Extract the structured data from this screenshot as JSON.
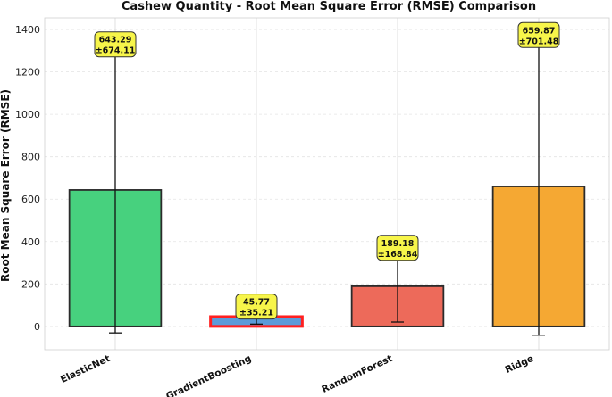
{
  "chart_data": {
    "type": "bar",
    "title": "Cashew Quantity - Root Mean Square Error (RMSE) Comparison",
    "xlabel": "",
    "ylabel": "Root Mean Square Error (RMSE)",
    "ylim": [
      -110,
      1455
    ],
    "yticks": [
      0,
      200,
      400,
      600,
      800,
      1000,
      1200,
      1400
    ],
    "grid": true,
    "categories": [
      "ElasticNet",
      "GradientBoosting",
      "RandomForest",
      "Ridge"
    ],
    "values": [
      643.29,
      45.77,
      189.18,
      659.87
    ],
    "errors": [
      674.11,
      35.21,
      168.84,
      701.48
    ],
    "value_labels": [
      "643.29",
      "45.77",
      "189.18",
      "659.87"
    ],
    "error_labels": [
      "±674.11",
      "±35.21",
      "±168.84",
      "±701.48"
    ],
    "colors": [
      "#47d17e",
      "#5b9bd9",
      "#ed6a5a",
      "#f5a833"
    ],
    "highlight_best": "GradientBoosting",
    "highlight_color": "#ff2020"
  }
}
